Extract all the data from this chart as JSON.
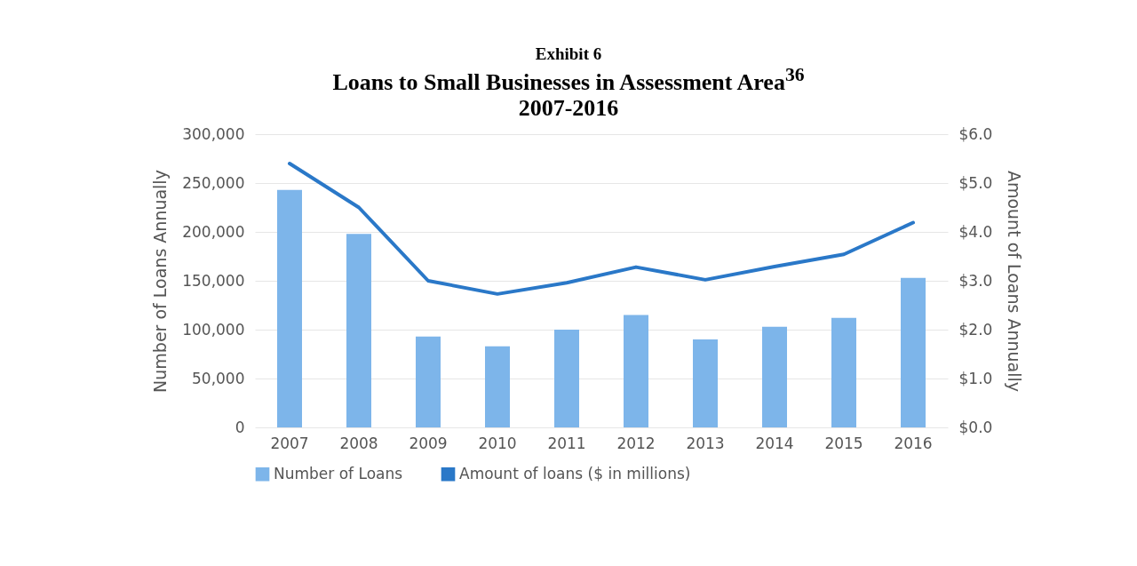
{
  "chart_data": {
    "type": "bar",
    "title": "Exhibit 6\nLoans to Small Businesses in Assessment Area$^{36}$\n2007-2016",
    "ylabel": "Number of Loans Annually",
    "y2label": "Amount of Loans Annually",
    "categories": [
      "2007",
      "2008",
      "2009",
      "2010",
      "2011",
      "2012",
      "2013",
      "2014",
      "2015",
      "2016"
    ],
    "series": [
      {
        "name": "Number of Loans",
        "color": "#7db5ea",
        "values": [
          243000,
          198000,
          93000,
          83000,
          100000,
          115000,
          90000,
          103000,
          112000,
          153000
        ]
      },
      {
        "name": "Amount of loans ($ in millions)",
        "type": "line",
        "axis": "y2",
        "color": "#2a78c8",
        "values": [
          5.4,
          4.5,
          3.0,
          2.73,
          2.96,
          3.28,
          3.02,
          3.29,
          3.54,
          4.19
        ]
      }
    ],
    "ylim": [
      0,
      300000
    ],
    "yticks": [
      0,
      {
        "value": 50000,
        "label": "50,000"
      },
      {
        "value": 100000,
        "label": "100,000"
      },
      {
        "value": 150000,
        "label": "150,000"
      },
      {
        "value": 200000,
        "label": "200,000"
      },
      {
        "value": 250000,
        "label": "250,000"
      },
      {
        "value": 300000,
        "label": "300,000"
      }
    ],
    "y2lim": [
      0,
      6
    ],
    "y2ticks": [
      {
        "value": 0,
        "label": "$0.0"
      },
      {
        "value": 1,
        "label": "$1.0"
      },
      {
        "value": 2,
        "label": "$2.0"
      },
      {
        "value": 3,
        "label": "$3.0"
      },
      {
        "value": 4,
        "label": "$4.0"
      },
      {
        "value": 5,
        "label": "$5.0"
      },
      {
        "value": 6,
        "label": "$6.0"
      }
    ],
    "grid": "y",
    "legend": "bottom"
  }
}
